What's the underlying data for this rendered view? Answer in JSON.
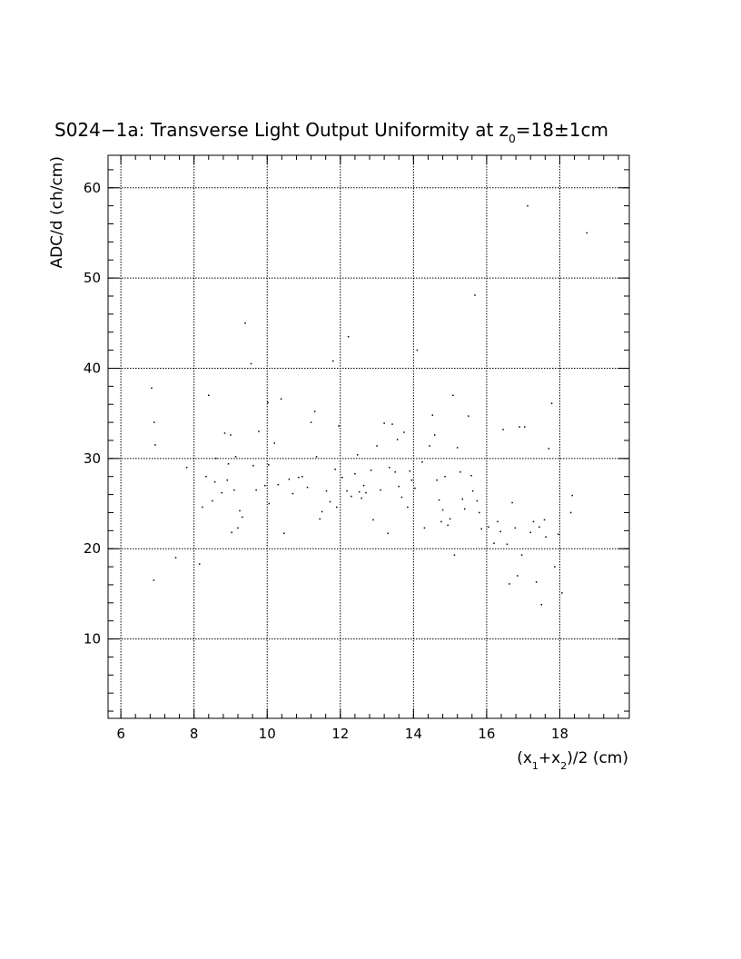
{
  "chart_data": {
    "type": "scatter",
    "title": "S024−1a: Transverse Light Output Uniformity at z",
    "title_sub": "0",
    "title_suffix": "=18±1cm",
    "xlabel": "(x",
    "xlabel_sub1": "1",
    "xlabel_mid": "+x",
    "xlabel_sub2": "2",
    "xlabel_suffix": ")/2 (cm)",
    "ylabel": "ADC/d (ch/cm)",
    "xlim": [
      5.65,
      19.9
    ],
    "ylim": [
      1.2,
      63.6
    ],
    "xticks": [
      6,
      8,
      10,
      12,
      14,
      16,
      18
    ],
    "yticks": [
      10,
      20,
      30,
      40,
      50,
      60
    ],
    "xtick_labels": [
      "6",
      "8",
      "10",
      "12",
      "14",
      "16",
      "18"
    ],
    "ytick_labels": [
      "10",
      "20",
      "30",
      "40",
      "50",
      "60"
    ],
    "grid": true,
    "x": [
      6.84,
      6.91,
      6.94,
      6.9,
      7.5,
      7.8,
      8.15,
      8.23,
      8.33,
      8.4,
      8.5,
      8.57,
      8.6,
      8.76,
      8.84,
      8.91,
      8.94,
      9.0,
      9.03,
      9.1,
      9.14,
      9.2,
      9.25,
      9.32,
      9.4,
      9.56,
      9.62,
      9.7,
      9.77,
      9.94,
      10.02,
      10.04,
      10.05,
      10.2,
      10.3,
      10.38,
      10.46,
      10.6,
      10.7,
      10.86,
      10.96,
      11.1,
      11.2,
      11.3,
      11.35,
      11.44,
      11.5,
      11.62,
      11.72,
      11.8,
      11.86,
      11.9,
      11.96,
      12.05,
      12.18,
      12.22,
      12.3,
      12.4,
      12.47,
      12.52,
      12.58,
      12.64,
      12.7,
      12.84,
      12.9,
      13.0,
      13.1,
      13.2,
      13.3,
      13.34,
      13.42,
      13.5,
      13.56,
      13.6,
      13.68,
      13.74,
      13.84,
      13.9,
      13.95,
      14.04,
      14.1,
      14.24,
      14.3,
      14.44,
      14.52,
      14.58,
      14.64,
      14.7,
      14.76,
      14.8,
      14.86,
      14.94,
      15.0,
      15.08,
      15.12,
      15.2,
      15.28,
      15.34,
      15.4,
      15.5,
      15.58,
      15.62,
      15.68,
      15.74,
      15.8,
      15.86,
      16.05,
      16.2,
      16.3,
      16.38,
      16.45,
      16.56,
      16.62,
      16.7,
      16.78,
      16.84,
      16.9,
      16.96,
      17.04,
      17.12,
      17.2,
      17.28,
      17.36,
      17.44,
      17.5,
      17.58,
      17.62,
      17.7,
      17.78,
      17.86,
      17.96,
      18.06,
      18.3,
      18.34,
      18.74
    ],
    "y": [
      37.8,
      34.0,
      31.5,
      16.5,
      19.0,
      29.0,
      18.3,
      24.6,
      28.0,
      37.0,
      25.3,
      27.4,
      30.0,
      26.2,
      32.8,
      27.6,
      29.4,
      32.6,
      21.8,
      26.5,
      30.2,
      22.3,
      24.2,
      23.5,
      45.0,
      40.5,
      29.2,
      26.5,
      33.0,
      27.0,
      36.2,
      29.3,
      25.0,
      31.7,
      27.1,
      36.6,
      21.7,
      27.7,
      26.1,
      27.9,
      28.0,
      26.8,
      34.0,
      35.2,
      30.2,
      23.3,
      24.1,
      26.4,
      25.2,
      40.8,
      28.8,
      24.6,
      33.6,
      27.9,
      26.4,
      43.5,
      25.8,
      28.3,
      30.4,
      26.3,
      25.6,
      27.0,
      26.2,
      28.7,
      23.2,
      31.4,
      26.5,
      33.9,
      21.7,
      29.0,
      33.8,
      28.5,
      32.1,
      26.9,
      25.7,
      32.9,
      24.6,
      28.6,
      27.6,
      26.7,
      42.0,
      29.6,
      22.3,
      31.4,
      34.8,
      32.6,
      27.6,
      25.4,
      23.0,
      24.3,
      28.0,
      22.6,
      23.3,
      37.0,
      19.3,
      31.2,
      28.5,
      25.5,
      24.4,
      34.7,
      28.1,
      26.4,
      48.1,
      25.3,
      24.0,
      22.2,
      22.4,
      20.6,
      23.0,
      21.9,
      33.2,
      20.5,
      16.1,
      25.1,
      22.3,
      17.0,
      33.5,
      19.3,
      33.5,
      58.0,
      21.8,
      23.0,
      16.3,
      22.4,
      13.8,
      23.2,
      21.3,
      31.1,
      36.1,
      18.0,
      21.6,
      15.1,
      24.0,
      25.9,
      55.0
    ]
  }
}
